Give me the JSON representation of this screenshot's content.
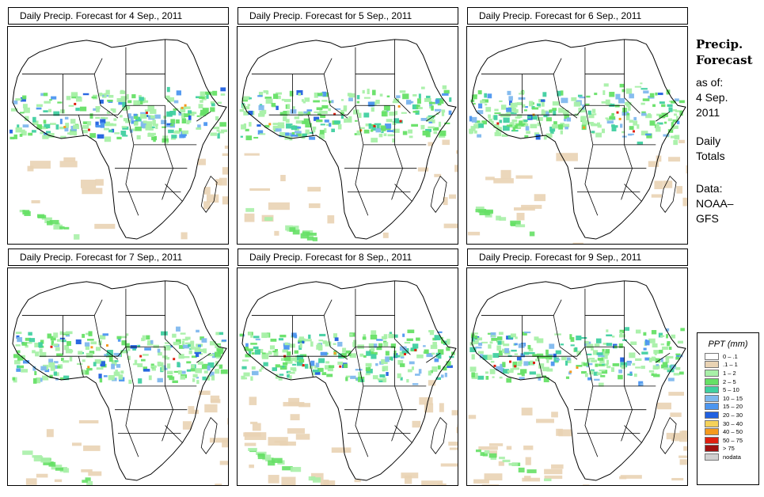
{
  "panels": [
    {
      "title": "Daily Precip. Forecast for  4 Sep., 2011"
    },
    {
      "title": "Daily Precip. Forecast for  5 Sep., 2011"
    },
    {
      "title": "Daily Precip. Forecast for  6 Sep., 2011"
    },
    {
      "title": "Daily Precip. Forecast for  7 Sep., 2011"
    },
    {
      "title": "Daily Precip. Forecast for  8 Sep., 2011"
    },
    {
      "title": "Daily Precip. Forecast for  9 Sep., 2011"
    }
  ],
  "side": {
    "heading_line1": "Precip.",
    "heading_line2": "Forecast",
    "asof": "as of:",
    "date_line1": "4 Sep.",
    "date_line2": "2011",
    "daily_line1": "Daily",
    "daily_line2": "Totals",
    "data_line1": "Data:",
    "data_line2": "NOAA–",
    "data_line3": "GFS"
  },
  "legend": {
    "title": "PPT (mm)",
    "items": [
      {
        "label": "0 – .1",
        "color": "#ffffff"
      },
      {
        "label": ".1 – 1",
        "color": "#e9d3b4"
      },
      {
        "label": "1 – 2",
        "color": "#a8f0a8"
      },
      {
        "label": "2 – 5",
        "color": "#66e066"
      },
      {
        "label": "5 – 10",
        "color": "#40d0a0"
      },
      {
        "label": "10 – 15",
        "color": "#7fb8ee"
      },
      {
        "label": "15 – 20",
        "color": "#4c96f0"
      },
      {
        "label": "20 – 30",
        "color": "#2060e0"
      },
      {
        "label": "30 – 40",
        "color": "#f5d25a"
      },
      {
        "label": "40 – 50",
        "color": "#f59a1e"
      },
      {
        "label": "50 – 75",
        "color": "#e02010"
      },
      {
        "label": "> 75",
        "color": "#a01010"
      },
      {
        "label": "nodata",
        "color": "#d0d0d0"
      }
    ]
  }
}
